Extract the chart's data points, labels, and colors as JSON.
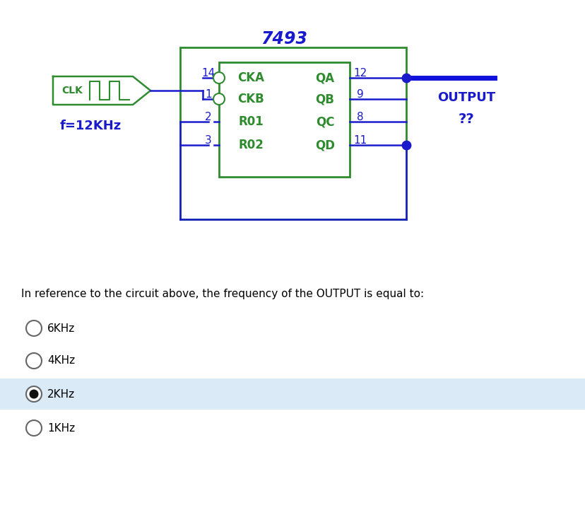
{
  "bg_color": "#ffffff",
  "circuit_color": "#1a1acd",
  "ic_border_color": "#2e8b2e",
  "ic_text_color": "#2e8b2e",
  "title_color": "#1a1acd",
  "chip_title": "7493",
  "chip_pins_left": [
    "CKA",
    "CKB",
    "R01",
    "R02"
  ],
  "chip_pins_right": [
    "QA",
    "QB",
    "QC",
    "QD"
  ],
  "pin_numbers_left": [
    "14",
    "1",
    "2",
    "3"
  ],
  "pin_numbers_right": [
    "12",
    "9",
    "8",
    "11"
  ],
  "clk_label": "CLK",
  "freq_label": "f=12KHz",
  "output_label": "OUTPUT",
  "question_mark": "??",
  "question_text": "In reference to the circuit above, the frequency of the OUTPUT is equal to:",
  "options": [
    "6KHz",
    "4KHz",
    "2KHz",
    "1KHz"
  ],
  "selected_option": 2,
  "highlight_color": "#daeaf7",
  "radio_outer_color": "#666666",
  "radio_inner_color": "#111111"
}
